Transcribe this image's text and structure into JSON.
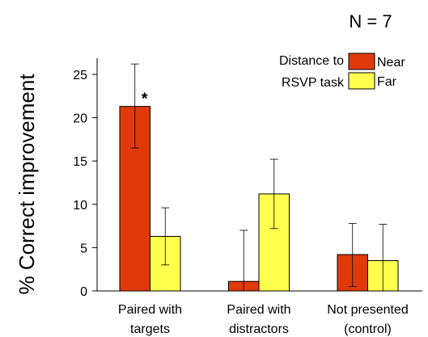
{
  "chart_data": {
    "type": "bar",
    "ylabel": "% Correct improvement",
    "ylim": [
      0,
      27.5
    ],
    "yticks": [
      0,
      5,
      10,
      15,
      20,
      25
    ],
    "n_label": "N = 7",
    "legend_title": [
      "Distance to",
      "RSVP task"
    ],
    "categories": [
      [
        "Paired with",
        "targets"
      ],
      [
        "Paired with",
        "distractors"
      ],
      [
        "Not presented",
        "(control)"
      ]
    ],
    "series": [
      {
        "name": "Near",
        "color": "#e03a0a",
        "values": [
          21.3,
          1.1,
          4.2
        ],
        "err_low": [
          16.5,
          0,
          0.5
        ],
        "err_high": [
          26.2,
          7.0,
          7.8
        ]
      },
      {
        "name": "Far",
        "color": "#ffff4d",
        "values": [
          6.3,
          11.2,
          3.5
        ],
        "err_low": [
          3.0,
          7.2,
          0
        ],
        "err_high": [
          9.6,
          15.2,
          7.7
        ]
      }
    ],
    "annotations": [
      {
        "text": "*",
        "category": 0,
        "series": 0
      }
    ],
    "legend_position": "top-right",
    "grid": false
  }
}
